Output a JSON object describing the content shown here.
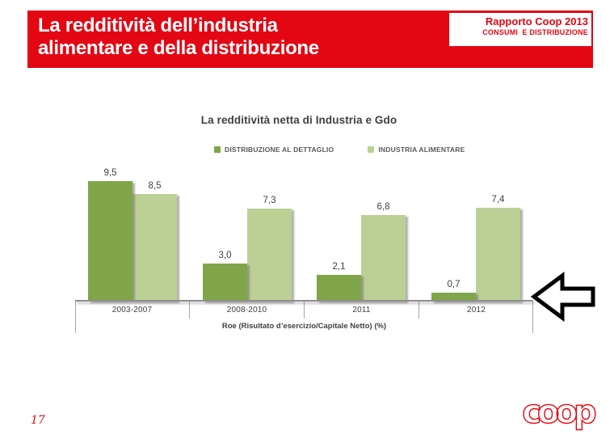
{
  "header": {
    "title_line1": "La redditività dell’industria",
    "title_line2": "alimentare e della distribuzione",
    "badge_line1": "Rapporto Coop 2013",
    "badge_line2": "CONSUMI  E DISTRIBUZIONE",
    "band_color": "#E30613"
  },
  "chart_data": {
    "type": "bar",
    "title": "La redditività netta di Industria e Gdo",
    "categories": [
      "2003-2007",
      "2008-2010",
      "2011",
      "2012"
    ],
    "series": [
      {
        "name": "DISTRIBUZIONE AL DETTAGLIO",
        "color": "#80A548",
        "values": [
          9.5,
          3.0,
          2.1,
          0.7
        ]
      },
      {
        "name": "INDUSTRIA ALIMENTARE",
        "color": "#BCD096",
        "values": [
          8.5,
          7.3,
          6.8,
          7.4
        ]
      }
    ],
    "value_labels": [
      [
        "9,5",
        "3,0",
        "2,1",
        "0,7"
      ],
      [
        "8,5",
        "7,3",
        "6,8",
        "7,4"
      ]
    ],
    "xlabel": "Roe (Risultato d’esercizio/Capitale Netto) (%)",
    "ylabel": "",
    "ylim": [
      0,
      10
    ],
    "grid": false,
    "legend_position": "top"
  },
  "annotation": {
    "arrow_direction": "left",
    "arrow_fill": "#ffffff",
    "arrow_stroke": "#000000"
  },
  "footer": {
    "page_number": "17",
    "logo_text": "coop",
    "logo_color": "#E30613"
  }
}
